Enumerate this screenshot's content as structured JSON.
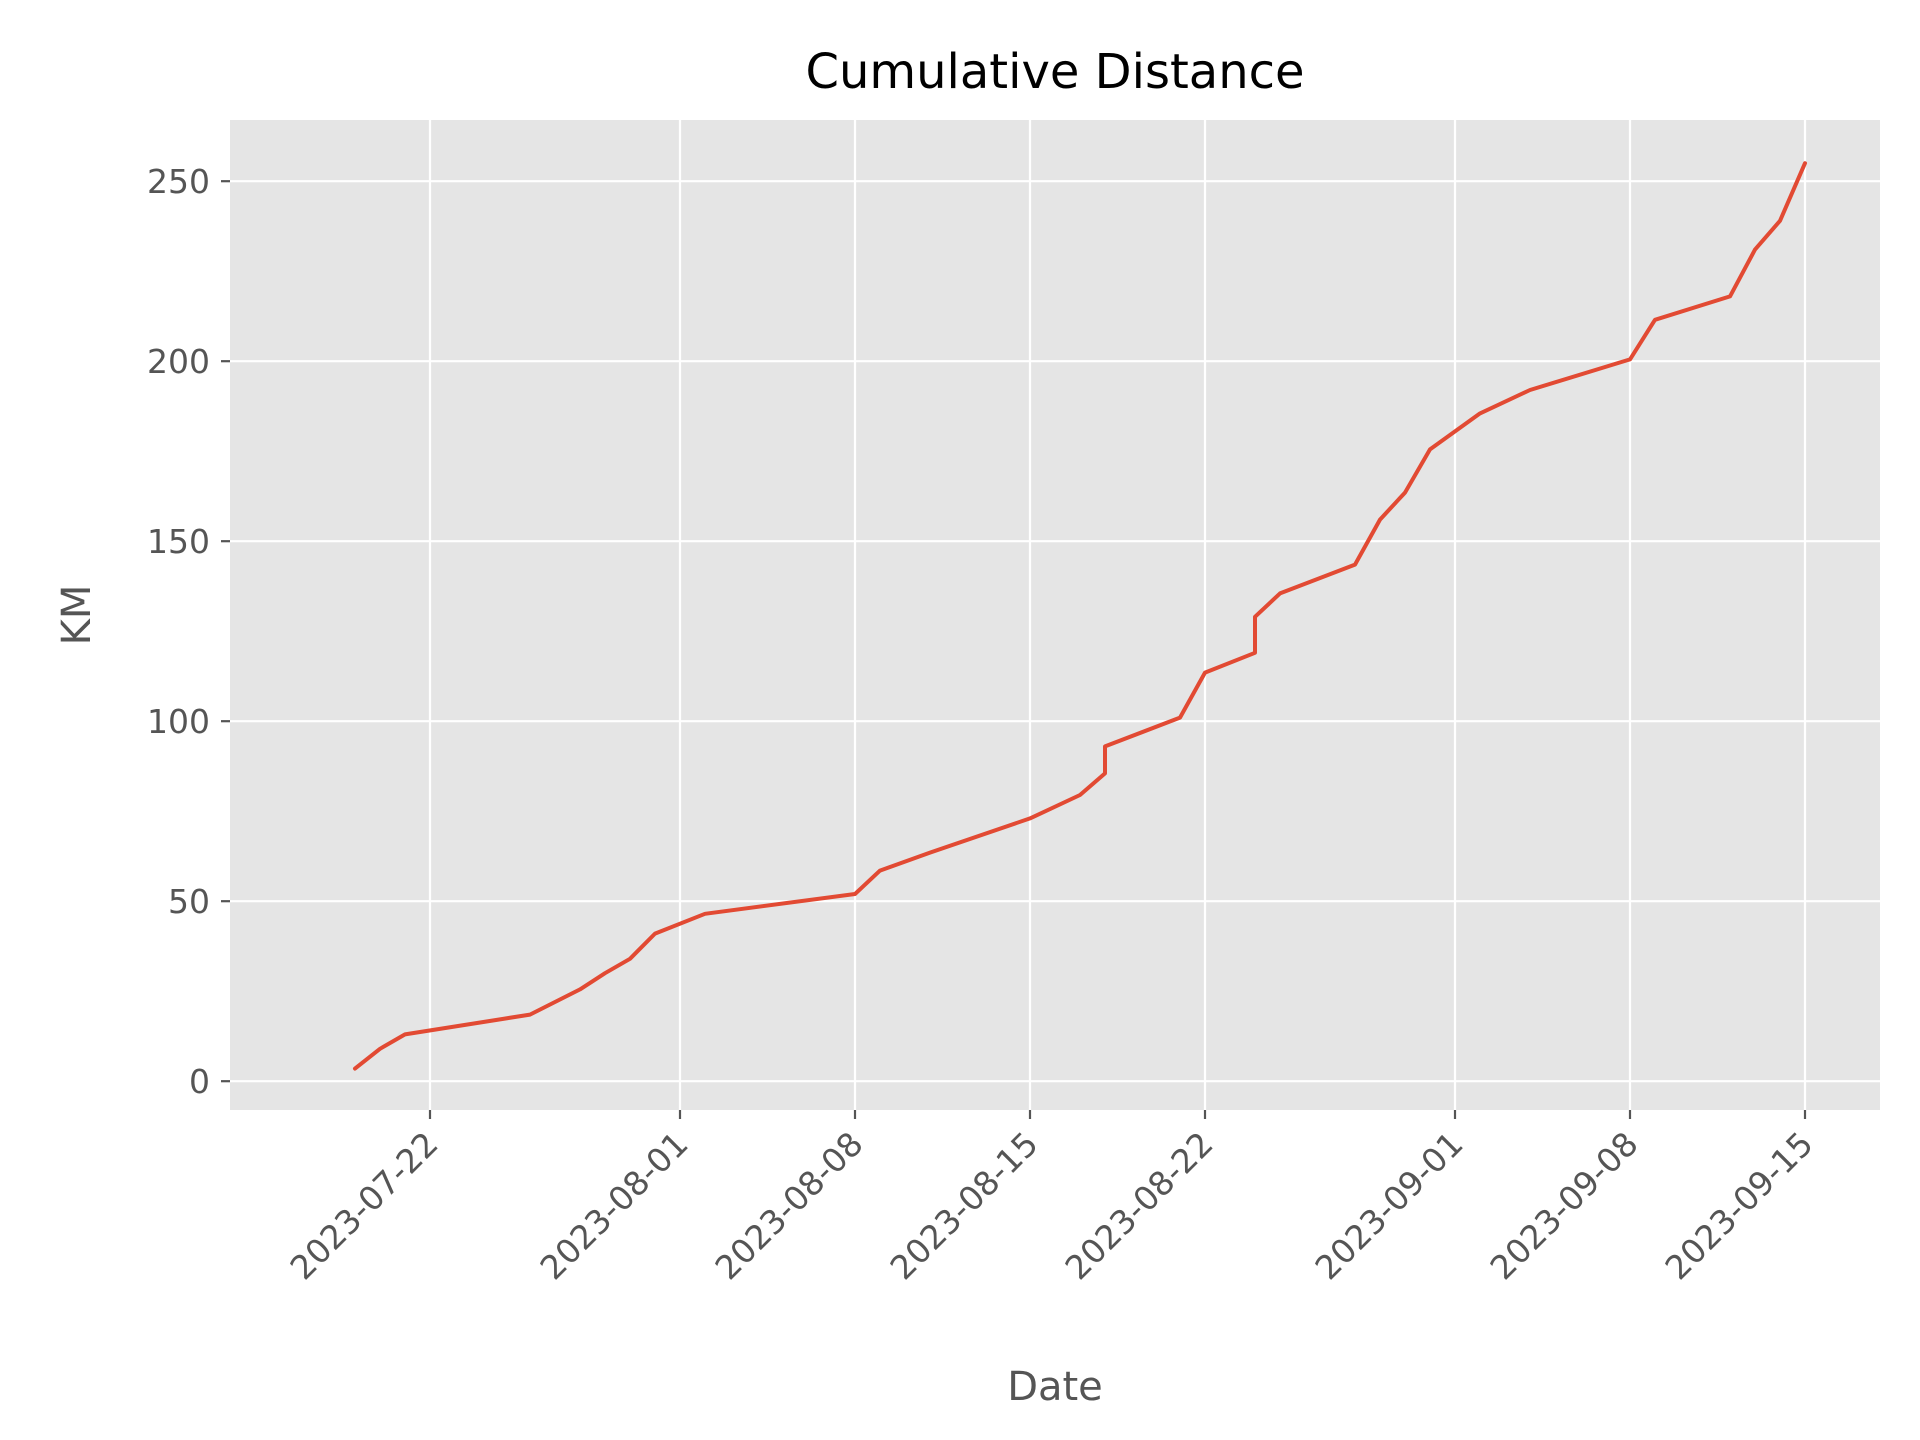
{
  "chart_data": {
    "type": "line",
    "title": "Cumulative Distance",
    "xlabel": "Date",
    "ylabel": "KM",
    "x_scale": "date",
    "xlim": [
      "2023-07-14",
      "2023-09-18"
    ],
    "ylim": [
      -8,
      267
    ],
    "x_ticks": [
      "2023-07-22",
      "2023-08-01",
      "2023-08-08",
      "2023-08-15",
      "2023-08-22",
      "2023-09-01",
      "2023-09-08",
      "2023-09-15"
    ],
    "y_ticks": [
      0,
      50,
      100,
      150,
      200,
      250
    ],
    "grid": true,
    "legend": "none",
    "colors": {
      "line": "#E24A33",
      "plot_background": "#E5E5E5",
      "grid": "#FFFFFF",
      "tick_text": "#555555",
      "title_text": "#000000"
    },
    "series": [
      {
        "x": [
          "2023-07-19",
          "2023-07-20",
          "2023-07-21",
          "2023-07-26",
          "2023-07-28",
          "2023-07-29",
          "2023-07-30",
          "2023-07-31",
          "2023-08-02",
          "2023-08-08",
          "2023-08-09",
          "2023-08-11",
          "2023-08-15",
          "2023-08-17",
          "2023-08-18",
          "2023-08-18",
          "2023-08-21",
          "2023-08-22",
          "2023-08-24",
          "2023-08-24",
          "2023-08-25",
          "2023-08-28",
          "2023-08-29",
          "2023-08-30",
          "2023-08-31",
          "2023-09-02",
          "2023-09-04",
          "2023-09-08",
          "2023-09-09",
          "2023-09-12",
          "2023-09-13",
          "2023-09-14",
          "2023-09-15"
        ],
        "y": [
          3.5,
          9,
          13,
          18.5,
          25.5,
          30,
          34,
          41,
          46.5,
          52,
          58.5,
          63.5,
          73,
          79.5,
          85.5,
          93,
          101,
          113.5,
          119,
          129,
          135.5,
          143.5,
          156,
          163.5,
          175.5,
          185.5,
          192,
          200.5,
          211.5,
          218,
          231,
          239,
          255
        ]
      }
    ]
  }
}
